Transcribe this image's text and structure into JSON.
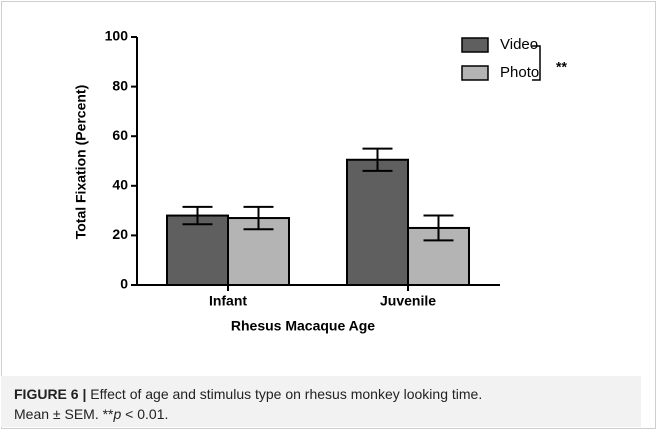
{
  "chart_data": {
    "type": "bar",
    "categories": [
      "Infant",
      "Juvenile"
    ],
    "series": [
      {
        "name": "Video",
        "color": "#5f5f5f",
        "values": [
          28,
          50.5
        ],
        "errors": [
          3.5,
          4.5
        ]
      },
      {
        "name": "Photo",
        "color": "#b4b4b4",
        "values": [
          27,
          23
        ],
        "errors": [
          4.5,
          5
        ]
      }
    ],
    "ylim": [
      0,
      100
    ],
    "yticks": [
      0,
      20,
      40,
      60,
      80,
      100
    ],
    "ylabel": "Total Fixation (Percent)",
    "xlabel": "Rhesus Macaque Age",
    "annotation": "**",
    "legend": "top-right"
  },
  "caption": {
    "label": "FIGURE 6 |",
    "text": "Effect of age and stimulus type on rhesus monkey looking time.",
    "text2": "Mean ± SEM. **",
    "p": "p",
    "text3": " < 0.01."
  }
}
